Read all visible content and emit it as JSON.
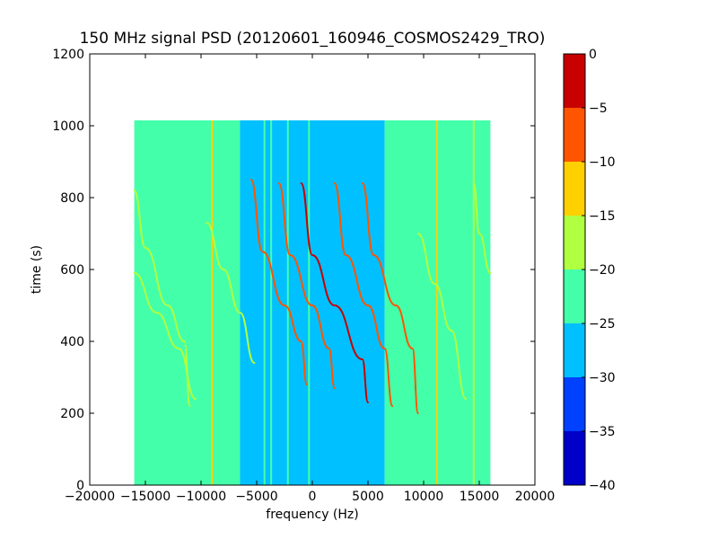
{
  "chart_data": {
    "type": "heatmap",
    "title": "150 MHz signal PSD (20120601_160946_COSMOS2429_TRO)",
    "xlabel": "frequency (Hz)",
    "ylabel": "time (s)",
    "xlim": [
      -20000,
      20000
    ],
    "ylim": [
      0,
      1200
    ],
    "x_ticks": [
      -20000,
      -15000,
      -10000,
      -5000,
      0,
      5000,
      10000,
      15000,
      20000
    ],
    "x_tick_labels": [
      "−20000",
      "−15000",
      "−10000",
      "−5000",
      "0",
      "5000",
      "10000",
      "15000",
      "20000"
    ],
    "y_ticks": [
      0,
      200,
      400,
      600,
      800,
      1000,
      1200
    ],
    "y_tick_labels": [
      "0",
      "200",
      "400",
      "600",
      "800",
      "1000",
      "1200"
    ],
    "data_extent": {
      "x": [
        -16000,
        16000
      ],
      "y": [
        0,
        1015
      ]
    },
    "colorbar": {
      "levels": [
        -40,
        -35,
        -30,
        -25,
        -20,
        -15,
        -10,
        -5,
        0
      ],
      "tick_labels": [
        "−40",
        "−35",
        "−30",
        "−25",
        "−20",
        "−15",
        "−10",
        "−5",
        "0"
      ],
      "colors": [
        "#0000c8",
        "#0040ff",
        "#00c0ff",
        "#44ffaa",
        "#b0ff40",
        "#ffd000",
        "#ff5500",
        "#c80000"
      ]
    },
    "background_levels": [
      {
        "x": [
          -16000,
          -6500
        ],
        "level": -22.5
      },
      {
        "x": [
          -6500,
          6500
        ],
        "level": -27.5
      },
      {
        "x": [
          6500,
          16000
        ],
        "level": -22.5
      }
    ],
    "vertical_lines": [
      {
        "x": -9000,
        "level": -12.5
      },
      {
        "x": -6600,
        "level": -22.5
      },
      {
        "x": -4300,
        "level": -22.5
      },
      {
        "x": -3700,
        "level": -22.5
      },
      {
        "x": -2200,
        "level": -22.5
      },
      {
        "x": -300,
        "level": -22.5
      },
      {
        "x": 11200,
        "level": -12.5
      },
      {
        "x": 14500,
        "level": -17.5
      }
    ],
    "traces": [
      {
        "level": -2.5,
        "points": [
          [
            -1000,
            840
          ],
          [
            0,
            640
          ],
          [
            2000,
            500
          ],
          [
            4500,
            350
          ],
          [
            5000,
            230
          ]
        ]
      },
      {
        "level": -7.5,
        "points": [
          [
            -5500,
            850
          ],
          [
            -4500,
            650
          ],
          [
            -2500,
            500
          ],
          [
            -1000,
            400
          ],
          [
            -500,
            280
          ]
        ]
      },
      {
        "level": -7.5,
        "points": [
          [
            -3000,
            840
          ],
          [
            -2000,
            640
          ],
          [
            0,
            500
          ],
          [
            1500,
            380
          ],
          [
            2000,
            270
          ]
        ]
      },
      {
        "level": -7.5,
        "points": [
          [
            2000,
            840
          ],
          [
            3000,
            640
          ],
          [
            5000,
            500
          ],
          [
            6500,
            380
          ],
          [
            7200,
            220
          ]
        ]
      },
      {
        "level": -7.5,
        "points": [
          [
            4500,
            840
          ],
          [
            5500,
            640
          ],
          [
            7500,
            500
          ],
          [
            9000,
            380
          ],
          [
            9500,
            200
          ]
        ]
      },
      {
        "level": -17.5,
        "points": [
          [
            -16000,
            820
          ],
          [
            -15000,
            660
          ],
          [
            -13000,
            500
          ],
          [
            -11500,
            400
          ],
          [
            -11000,
            220
          ]
        ]
      },
      {
        "level": -17.5,
        "points": [
          [
            -16000,
            590
          ],
          [
            -14000,
            480
          ],
          [
            -12000,
            380
          ],
          [
            -10500,
            240
          ]
        ]
      },
      {
        "level": -17.5,
        "points": [
          [
            -9500,
            730
          ],
          [
            -8000,
            600
          ],
          [
            -6500,
            480
          ],
          [
            -5200,
            340
          ]
        ]
      },
      {
        "level": -17.5,
        "points": [
          [
            9500,
            700
          ],
          [
            11000,
            560
          ],
          [
            12500,
            430
          ],
          [
            13800,
            240
          ]
        ]
      },
      {
        "level": -17.5,
        "points": [
          [
            14500,
            840
          ],
          [
            15000,
            700
          ],
          [
            16000,
            590
          ]
        ]
      }
    ]
  }
}
